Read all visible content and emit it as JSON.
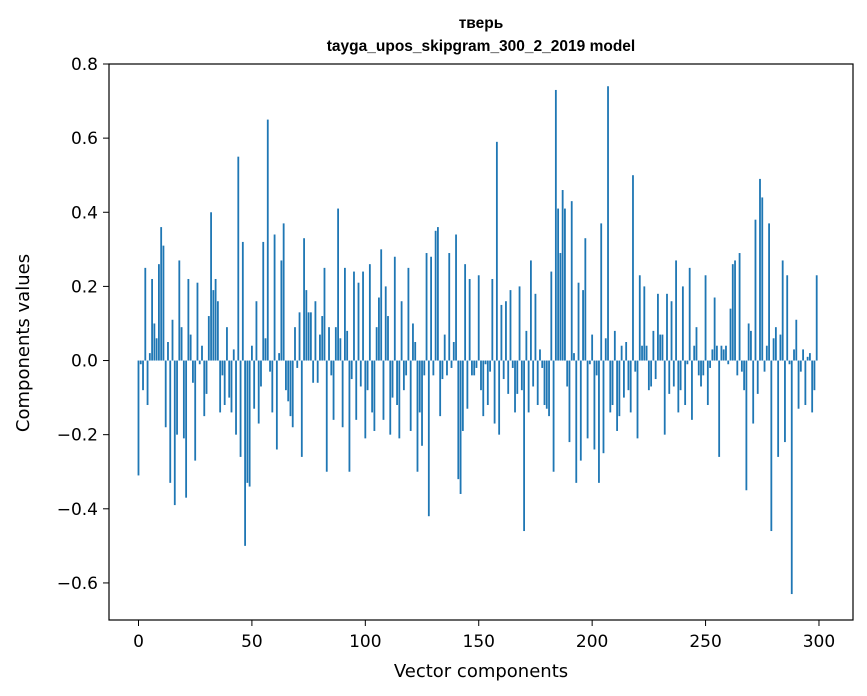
{
  "chart_data": {
    "type": "bar",
    "title_lines": [
      "тверь",
      "tayga_upos_skipgram_300_2_2019 model"
    ],
    "xlabel": "Vector components",
    "ylabel": "Components values",
    "xlim": [
      -13,
      315
    ],
    "ylim": [
      -0.7,
      0.8
    ],
    "xticks": [
      0,
      50,
      100,
      150,
      200,
      250,
      300
    ],
    "xtick_labels": [
      "0",
      "50",
      "100",
      "150",
      "200",
      "250",
      "300"
    ],
    "yticks": [
      -0.6,
      -0.4,
      -0.2,
      0.0,
      0.2,
      0.4,
      0.6,
      0.8
    ],
    "ytick_labels": [
      "−0.6",
      "−0.4",
      "−0.2",
      "0.0",
      "0.2",
      "0.4",
      "0.6",
      "0.8"
    ],
    "bar_color": "#1f77b4",
    "grid": false,
    "x": [
      0,
      1,
      2,
      3,
      4,
      5,
      6,
      7,
      8,
      9,
      10,
      11,
      12,
      13,
      14,
      15,
      16,
      17,
      18,
      19,
      20,
      21,
      22,
      23,
      24,
      25,
      26,
      27,
      28,
      29,
      30,
      31,
      32,
      33,
      34,
      35,
      36,
      37,
      38,
      39,
      40,
      41,
      42,
      43,
      44,
      45,
      46,
      47,
      48,
      49,
      50,
      51,
      52,
      53,
      54,
      55,
      56,
      57,
      58,
      59,
      60,
      61,
      62,
      63,
      64,
      65,
      66,
      67,
      68,
      69,
      70,
      71,
      72,
      73,
      74,
      75,
      76,
      77,
      78,
      79,
      80,
      81,
      82,
      83,
      84,
      85,
      86,
      87,
      88,
      89,
      90,
      91,
      92,
      93,
      94,
      95,
      96,
      97,
      98,
      99,
      100,
      101,
      102,
      103,
      104,
      105,
      106,
      107,
      108,
      109,
      110,
      111,
      112,
      113,
      114,
      115,
      116,
      117,
      118,
      119,
      120,
      121,
      122,
      123,
      124,
      125,
      126,
      127,
      128,
      129,
      130,
      131,
      132,
      133,
      134,
      135,
      136,
      137,
      138,
      139,
      140,
      141,
      142,
      143,
      144,
      145,
      146,
      147,
      148,
      149,
      150,
      151,
      152,
      153,
      154,
      155,
      156,
      157,
      158,
      159,
      160,
      161,
      162,
      163,
      164,
      165,
      166,
      167,
      168,
      169,
      170,
      171,
      172,
      173,
      174,
      175,
      176,
      177,
      178,
      179,
      180,
      181,
      182,
      183,
      184,
      185,
      186,
      187,
      188,
      189,
      190,
      191,
      192,
      193,
      194,
      195,
      196,
      197,
      198,
      199,
      200,
      201,
      202,
      203,
      204,
      205,
      206,
      207,
      208,
      209,
      210,
      211,
      212,
      213,
      214,
      215,
      216,
      217,
      218,
      219,
      220,
      221,
      222,
      223,
      224,
      225,
      226,
      227,
      228,
      229,
      230,
      231,
      232,
      233,
      234,
      235,
      236,
      237,
      238,
      239,
      240,
      241,
      242,
      243,
      244,
      245,
      246,
      247,
      248,
      249,
      250,
      251,
      252,
      253,
      254,
      255,
      256,
      257,
      258,
      259,
      260,
      261,
      262,
      263,
      264,
      265,
      266,
      267,
      268,
      269,
      270,
      271,
      272,
      273,
      274,
      275,
      276,
      277,
      278,
      279,
      280,
      281,
      282,
      283,
      284,
      285,
      286,
      287,
      288,
      289,
      290,
      291,
      292,
      293,
      294,
      295,
      296,
      297,
      298,
      299
    ],
    "values": [
      -0.31,
      -0.01,
      -0.08,
      0.25,
      -0.12,
      0.02,
      0.22,
      0.1,
      0.06,
      0.26,
      0.36,
      0.31,
      -0.18,
      0.05,
      -0.33,
      0.11,
      -0.39,
      -0.2,
      0.27,
      0.09,
      -0.21,
      -0.37,
      0.22,
      0.07,
      -0.06,
      -0.27,
      0.21,
      -0.01,
      0.04,
      -0.15,
      -0.09,
      0.12,
      0.4,
      0.19,
      0.22,
      0.16,
      -0.14,
      -0.04,
      -0.12,
      0.09,
      -0.1,
      -0.14,
      0.03,
      -0.2,
      0.55,
      -0.26,
      0.32,
      -0.5,
      -0.33,
      -0.34,
      0.04,
      -0.13,
      0.16,
      -0.17,
      -0.07,
      0.32,
      0.06,
      0.65,
      -0.03,
      -0.14,
      0.34,
      -0.24,
      0.02,
      0.27,
      0.37,
      -0.08,
      -0.11,
      -0.15,
      -0.18,
      0.09,
      -0.02,
      0.13,
      -0.26,
      0.33,
      0.19,
      0.13,
      0.13,
      -0.06,
      0.16,
      -0.06,
      0.07,
      0.12,
      0.25,
      -0.3,
      0.09,
      -0.04,
      -0.16,
      0.09,
      0.41,
      0.06,
      -0.18,
      0.25,
      0.08,
      -0.3,
      -0.05,
      0.24,
      -0.16,
      0.21,
      -0.07,
      0.24,
      -0.21,
      -0.08,
      0.26,
      -0.14,
      -0.19,
      0.09,
      0.17,
      0.3,
      -0.16,
      0.2,
      0.12,
      -0.2,
      -0.1,
      0.28,
      -0.12,
      -0.21,
      0.16,
      -0.08,
      -0.04,
      0.25,
      -0.19,
      0.1,
      0.05,
      -0.3,
      -0.14,
      -0.23,
      -0.04,
      0.29,
      -0.42,
      0.28,
      -0.04,
      0.35,
      0.36,
      -0.15,
      -0.05,
      0.07,
      -0.04,
      0.29,
      -0.02,
      0.05,
      0.34,
      -0.32,
      -0.36,
      -0.19,
      0.26,
      -0.13,
      0.22,
      -0.04,
      -0.04,
      -0.02,
      0.23,
      -0.08,
      -0.15,
      -0.01,
      -0.12,
      -0.03,
      0.22,
      -0.17,
      0.59,
      -0.2,
      0.15,
      -0.05,
      0.16,
      -0.09,
      0.19,
      -0.02,
      -0.14,
      -0.09,
      0.2,
      -0.08,
      -0.46,
      0.08,
      -0.14,
      0.27,
      -0.07,
      0.18,
      -0.12,
      0.03,
      -0.02,
      -0.12,
      -0.13,
      -0.15,
      0.24,
      -0.3,
      0.73,
      0.41,
      0.29,
      0.46,
      0.41,
      -0.07,
      -0.22,
      0.43,
      0.02,
      -0.33,
      0.21,
      -0.27,
      0.19,
      0.33,
      -0.21,
      -0.01,
      0.07,
      -0.24,
      -0.04,
      -0.33,
      0.37,
      -0.25,
      0.06,
      0.74,
      -0.14,
      -0.12,
      0.08,
      -0.19,
      -0.15,
      0.04,
      -0.1,
      0.05,
      -0.08,
      -0.14,
      0.5,
      -0.03,
      -0.21,
      0.23,
      0.04,
      0.2,
      0.04,
      -0.08,
      -0.07,
      0.08,
      -0.05,
      0.18,
      0.07,
      0.07,
      -0.2,
      0.18,
      -0.09,
      0.16,
      -0.07,
      0.27,
      -0.14,
      -0.08,
      0.2,
      -0.12,
      -0.01,
      0.25,
      -0.16,
      0.04,
      0.09,
      -0.04,
      -0.07,
      -0.04,
      0.23,
      -0.12,
      -0.02,
      0.03,
      0.17,
      0.04,
      -0.26,
      0.04,
      0.03,
      0.04,
      -0.01,
      0.14,
      0.26,
      0.27,
      -0.04,
      0.29,
      -0.03,
      -0.08,
      -0.35,
      0.1,
      0.08,
      -0.17,
      0.38,
      -0.09,
      0.49,
      0.44,
      -0.03,
      0.04,
      0.37,
      -0.46,
      0.06,
      0.09,
      -0.26,
      0.07,
      0.27,
      -0.22,
      0.23,
      -0.01,
      -0.63,
      0.03,
      0.11,
      -0.13,
      -0.03,
      0.03,
      -0.12,
      0.01,
      0.02,
      -0.14,
      -0.08,
      0.23
    ]
  }
}
